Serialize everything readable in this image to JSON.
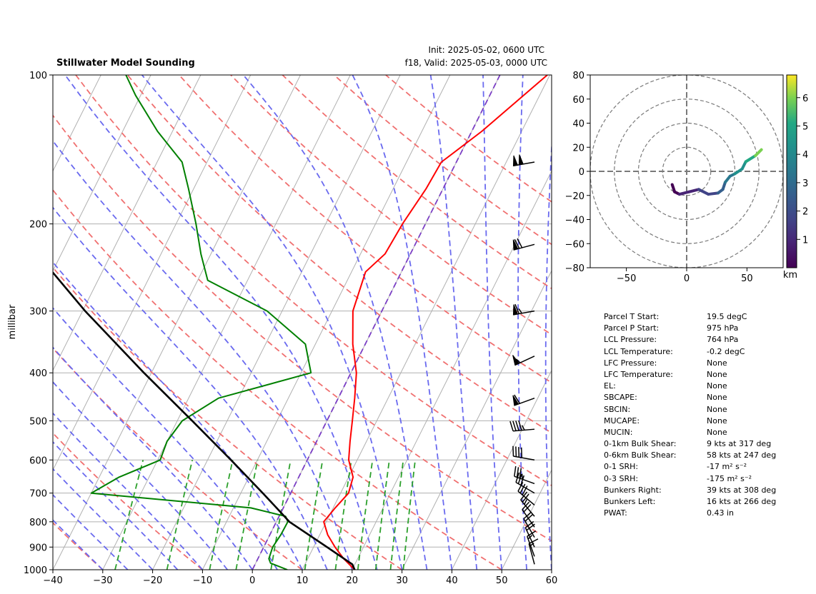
{
  "header": {
    "title": "Stillwater Model Sounding",
    "init_text": "Init: 2025-05-02, 0600 UTC",
    "valid_text": "f18, Valid: 2025-05-03, 0000 UTC"
  },
  "chart_data": [
    {
      "type": "skew-t",
      "ylabel": "millibar",
      "xlim": [
        -40,
        60
      ],
      "ylim": [
        1000,
        100
      ],
      "x_ticks": [
        "−40",
        "−30",
        "−20",
        "−10",
        "0",
        "10",
        "20",
        "30",
        "40",
        "50",
        "60"
      ],
      "x_tick_values": [
        -40,
        -30,
        -20,
        -10,
        0,
        10,
        20,
        30,
        40,
        50,
        60
      ],
      "y_ticks": [
        "1000",
        "900",
        "800",
        "700",
        "600",
        "500",
        "400",
        "300",
        "200",
        "100"
      ],
      "y_tick_values": [
        1000,
        900,
        800,
        700,
        600,
        500,
        400,
        300,
        200,
        100
      ],
      "grid": true,
      "colors": {
        "temperature": "#ff0000",
        "dewpoint": "#008000",
        "parcel": "#000000",
        "dry_adiabats": "#f07070",
        "moist_adiabats": "#6a6aef",
        "mixing_ratio": "#2ca02c",
        "isotherms": "#b0b0b0",
        "zero_isotherm": "#7b3fc4"
      },
      "series": [
        {
          "name": "temperature",
          "points": [
            [
              1000,
              20.5
            ],
            [
              950,
              17.2
            ],
            [
              900,
              14.3
            ],
            [
              850,
              11.6
            ],
            [
              800,
              9.5
            ],
            [
              750,
              10.4
            ],
            [
              700,
              11.6
            ],
            [
              650,
              10.9
            ],
            [
              600,
              8.3
            ],
            [
              550,
              6.7
            ],
            [
              500,
              5.1
            ],
            [
              450,
              3.3
            ],
            [
              400,
              1.1
            ],
            [
              350,
              -2.5
            ],
            [
              300,
              -5.8
            ],
            [
              250,
              -7.2
            ],
            [
              230,
              -5.1
            ],
            [
              200,
              -4.6
            ],
            [
              170,
              -3.4
            ],
            [
              150,
              -3.0
            ],
            [
              130,
              2.0
            ],
            [
              100,
              9.5
            ]
          ]
        },
        {
          "name": "dewpoint",
          "points": [
            [
              1000,
              7.0
            ],
            [
              970,
              3.0
            ],
            [
              950,
              2.2
            ],
            [
              900,
              1.8
            ],
            [
              850,
              2.2
            ],
            [
              800,
              2.3
            ],
            [
              780,
              1.3
            ],
            [
              750,
              -6.5
            ],
            [
              700,
              -40.0
            ],
            [
              650,
              -36.0
            ],
            [
              600,
              -29.5
            ],
            [
              550,
              -30.0
            ],
            [
              500,
              -29.0
            ],
            [
              450,
              -24.0
            ],
            [
              400,
              -8.0
            ],
            [
              350,
              -12.0
            ],
            [
              300,
              -23.0
            ],
            [
              260,
              -38.0
            ],
            [
              230,
              -42.0
            ],
            [
              200,
              -46.0
            ],
            [
              170,
              -51.0
            ],
            [
              150,
              -55.0
            ],
            [
              130,
              -63.0
            ],
            [
              110,
              -71.0
            ],
            [
              100,
              -75.0
            ]
          ]
        },
        {
          "name": "parcel",
          "points": [
            [
              1000,
              20.5
            ],
            [
              975,
              19.5
            ],
            [
              900,
              12.7
            ],
            [
              850,
              7.8
            ],
            [
              800,
              2.6
            ],
            [
              764,
              -0.2
            ],
            [
              700,
              -5.6
            ],
            [
              600,
              -15.3
            ],
            [
              500,
              -27.0
            ],
            [
              400,
              -41.5
            ],
            [
              300,
              -59.5
            ],
            [
              250,
              -70.0
            ],
            [
              200,
              -82.0
            ],
            [
              150,
              -96.0
            ],
            [
              120,
              -104.0
            ],
            [
              100,
              -110.0
            ]
          ]
        }
      ],
      "wind_barbs": [
        {
          "p": 150,
          "dir": 260,
          "speed": 100
        },
        {
          "p": 220,
          "dir": 255,
          "speed": 70
        },
        {
          "p": 300,
          "dir": 260,
          "speed": 65
        },
        {
          "p": 370,
          "dir": 245,
          "speed": 55
        },
        {
          "p": 450,
          "dir": 250,
          "speed": 60
        },
        {
          "p": 520,
          "dir": 265,
          "speed": 45
        },
        {
          "p": 600,
          "dir": 280,
          "speed": 40
        },
        {
          "p": 670,
          "dir": 290,
          "speed": 35
        },
        {
          "p": 700,
          "dir": 300,
          "speed": 30
        },
        {
          "p": 740,
          "dir": 310,
          "speed": 30
        },
        {
          "p": 780,
          "dir": 320,
          "speed": 25
        },
        {
          "p": 820,
          "dir": 325,
          "speed": 20
        },
        {
          "p": 860,
          "dir": 330,
          "speed": 20
        },
        {
          "p": 900,
          "dir": 335,
          "speed": 20
        },
        {
          "p": 940,
          "dir": 340,
          "speed": 15
        },
        {
          "p": 975,
          "dir": 345,
          "speed": 15
        }
      ]
    },
    {
      "type": "hodograph",
      "xlim": [
        -80,
        80
      ],
      "ylim": [
        -80,
        80
      ],
      "x_ticks": [
        "−50",
        "0",
        "50"
      ],
      "x_tick_values": [
        -50,
        0,
        50
      ],
      "y_ticks": [
        "80",
        "60",
        "40",
        "20",
        "0",
        "−20",
        "−40",
        "−60",
        "−80"
      ],
      "y_tick_values": [
        80,
        60,
        40,
        20,
        0,
        -20,
        -40,
        -60,
        -80
      ],
      "rings": [
        20,
        40,
        60,
        80
      ],
      "colorbar_label": "km",
      "colorbar_ticks": [
        "1",
        "2",
        "3",
        "4",
        "5",
        "6"
      ],
      "colorbar_tick_values": [
        1,
        2,
        3,
        4,
        5,
        6
      ],
      "colorbar_range": [
        0,
        6.8
      ],
      "points": [
        {
          "u": -12,
          "v": -11,
          "km": 0.1
        },
        {
          "u": -10,
          "v": -17,
          "km": 0.3
        },
        {
          "u": -6,
          "v": -19,
          "km": 0.5
        },
        {
          "u": 2,
          "v": -17,
          "km": 0.8
        },
        {
          "u": 10,
          "v": -15,
          "km": 1.2
        },
        {
          "u": 18,
          "v": -19,
          "km": 1.6
        },
        {
          "u": 26,
          "v": -18,
          "km": 2.0
        },
        {
          "u": 30,
          "v": -15,
          "km": 2.4
        },
        {
          "u": 32,
          "v": -9,
          "km": 2.8
        },
        {
          "u": 36,
          "v": -4,
          "km": 3.2
        },
        {
          "u": 40,
          "v": -2,
          "km": 3.6
        },
        {
          "u": 46,
          "v": 2,
          "km": 4.2
        },
        {
          "u": 49,
          "v": 8,
          "km": 4.8
        },
        {
          "u": 57,
          "v": 13,
          "km": 5.5
        },
        {
          "u": 62,
          "v": 18,
          "km": 6.3
        }
      ]
    }
  ],
  "parameters": [
    {
      "label": "Parcel T Start:",
      "value": "19.5 degC"
    },
    {
      "label": "Parcel P Start:",
      "value": "975 hPa"
    },
    {
      "label": "LCL Pressure:",
      "value": "764 hPa"
    },
    {
      "label": "LCL Temperature:",
      "value": "-0.2 degC"
    },
    {
      "label": "LFC Pressure:",
      "value": "None"
    },
    {
      "label": "LFC Temperature:",
      "value": "None"
    },
    {
      "label": "EL:",
      "value": "None"
    },
    {
      "label": "SBCAPE:",
      "value": "None"
    },
    {
      "label": "SBCIN:",
      "value": "None"
    },
    {
      "label": "MUCAPE:",
      "value": "None"
    },
    {
      "label": "MUCIN:",
      "value": "None"
    },
    {
      "label": "0-1km Bulk Shear:",
      "value": "9 kts at 317 deg"
    },
    {
      "label": "0-6km Bulk Shear:",
      "value": "58 kts at 247 deg"
    },
    {
      "label": "0-1 SRH:",
      "value": "-17 m² s⁻²"
    },
    {
      "label": "0-3 SRH:",
      "value": "-175 m² s⁻²"
    },
    {
      "label": "Bunkers Right:",
      "value": "39 kts at 308 deg"
    },
    {
      "label": "Bunkers Left:",
      "value": "16 kts at 266 deg"
    },
    {
      "label": "PWAT:",
      "value": "0.43 in"
    }
  ]
}
